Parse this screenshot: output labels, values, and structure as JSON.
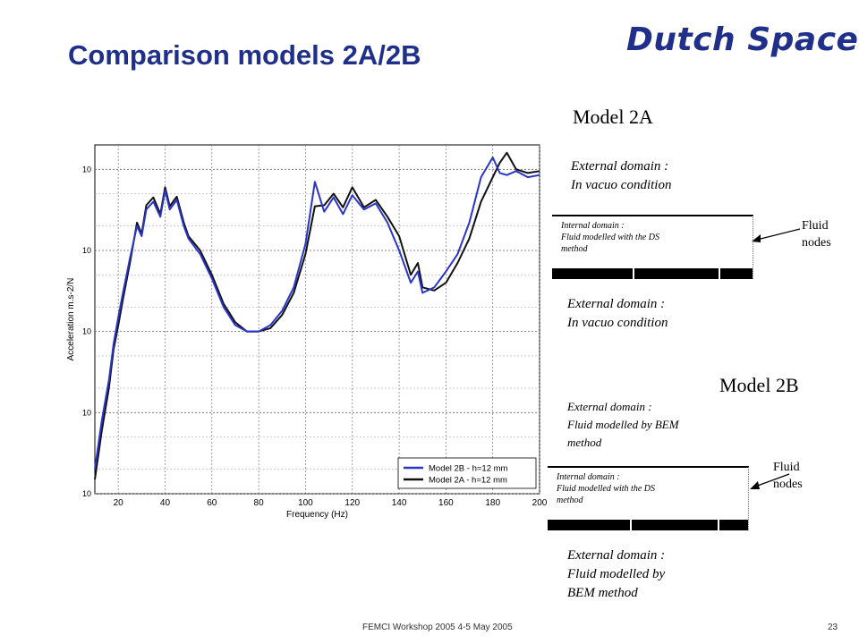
{
  "slide": {
    "title": "Comparison models 2A/2B",
    "logo": "Dutch Space",
    "footer": "FEMCI Workshop 2005 4-5  May 2005",
    "page_number": "23"
  },
  "model_2a": {
    "label": "Model 2A",
    "external_top": [
      "External domain :",
      "In vacuo condition"
    ],
    "internal": [
      "Internal domain :",
      "Fluid modelled with the DS",
      "method"
    ],
    "external_bottom": [
      "External domain :",
      "In vacuo condition"
    ],
    "fluid_nodes": [
      "Fluid",
      "nodes"
    ]
  },
  "model_2b": {
    "label": "Model 2B",
    "external_top": [
      "External domain :",
      "Fluid modelled by BEM",
      "method"
    ],
    "internal": [
      "Internal domain :",
      "Fluid modelled with the DS",
      "method"
    ],
    "external_bottom": [
      "External domain :",
      "Fluid modelled by",
      "BEM method"
    ],
    "fluid_nodes": [
      "Fluid",
      "nodes"
    ]
  },
  "chart_data": {
    "type": "line",
    "xlabel": "Frequency (Hz)",
    "ylabel": "Acceleration m.s-2/N",
    "xlim": [
      10,
      200
    ],
    "x_ticks": [
      "20",
      "40",
      "60",
      "80",
      "100",
      "120",
      "140",
      "160",
      "180",
      "200"
    ],
    "y_tick_labels": [
      "10",
      "10",
      "10",
      "10"
    ],
    "y_scale": "log",
    "ylim": [
      0.001,
      20
    ],
    "grid": true,
    "legend_position": "bottom-right",
    "series": [
      {
        "name": "Model 2B - h=12 mm",
        "color": "#2a35c8",
        "x": [
          10,
          13,
          16,
          18,
          20,
          22,
          25,
          28,
          30,
          32,
          35,
          38,
          40,
          42,
          45,
          48,
          50,
          55,
          60,
          65,
          70,
          75,
          80,
          85,
          90,
          95,
          100,
          104,
          108,
          112,
          116,
          120,
          125,
          130,
          135,
          140,
          145,
          148,
          150,
          155,
          160,
          165,
          170,
          175,
          180,
          183,
          186,
          190,
          195,
          200
        ],
        "y": [
          0.002,
          0.008,
          0.025,
          0.07,
          0.15,
          0.3,
          0.8,
          2.0,
          1.5,
          3.2,
          4.0,
          2.6,
          5.5,
          3.2,
          4.2,
          2.0,
          1.4,
          0.9,
          0.45,
          0.2,
          0.12,
          0.1,
          0.1,
          0.12,
          0.18,
          0.35,
          1.2,
          7.0,
          3.0,
          4.5,
          2.8,
          4.8,
          3.2,
          3.8,
          2.2,
          1.0,
          0.4,
          0.55,
          0.3,
          0.35,
          0.55,
          0.9,
          2.2,
          8.0,
          14.0,
          9.0,
          8.5,
          9.5,
          8.0,
          8.5
        ]
      },
      {
        "name": "Model 2A - h=12 mm",
        "color": "#111111",
        "x": [
          10,
          13,
          16,
          18,
          20,
          22,
          25,
          28,
          30,
          32,
          35,
          38,
          40,
          42,
          45,
          48,
          50,
          55,
          60,
          65,
          70,
          75,
          80,
          85,
          90,
          95,
          100,
          104,
          108,
          112,
          116,
          120,
          125,
          130,
          135,
          140,
          145,
          148,
          150,
          155,
          160,
          165,
          170,
          175,
          180,
          183,
          186,
          190,
          195,
          200
        ],
        "y": [
          0.0015,
          0.006,
          0.02,
          0.06,
          0.12,
          0.25,
          0.7,
          2.2,
          1.6,
          3.6,
          4.5,
          2.8,
          6.0,
          3.5,
          4.6,
          2.2,
          1.5,
          1.0,
          0.5,
          0.22,
          0.13,
          0.1,
          0.1,
          0.11,
          0.16,
          0.3,
          0.9,
          3.5,
          3.6,
          5.0,
          3.4,
          6.0,
          3.4,
          4.2,
          2.6,
          1.5,
          0.5,
          0.7,
          0.35,
          0.32,
          0.4,
          0.7,
          1.4,
          4.0,
          8.0,
          12.0,
          16.0,
          10.0,
          9.0,
          9.5
        ]
      }
    ]
  }
}
